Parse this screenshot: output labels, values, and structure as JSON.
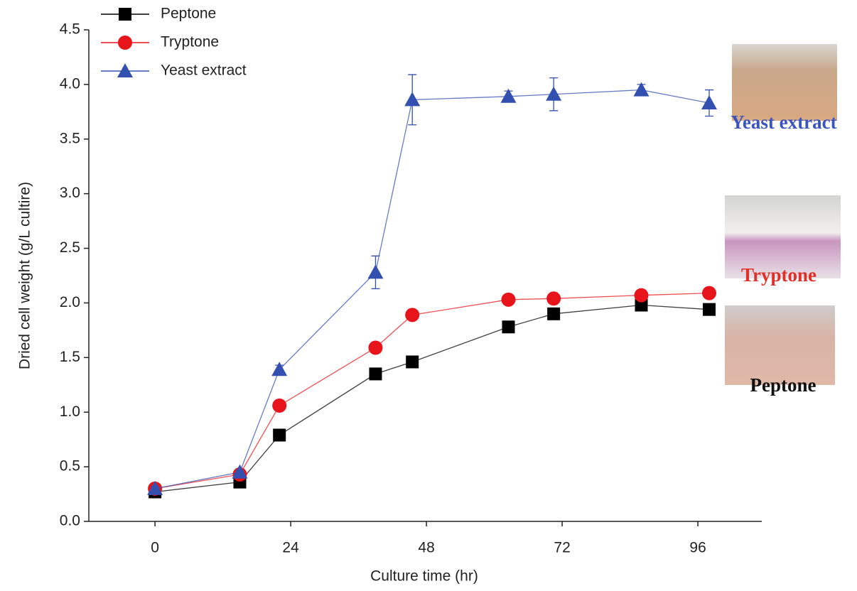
{
  "chart_data": {
    "type": "line",
    "x_label": "Culture time (hr)",
    "y_label": "Dried cell weight (g/L cultire)",
    "x": [
      0,
      15,
      22,
      39,
      45.5,
      62.5,
      70.5,
      86,
      98
    ],
    "series": [
      {
        "name": "Peptone",
        "color": "#000000",
        "marker": "square",
        "values": [
          0.27,
          0.36,
          0.79,
          1.35,
          1.46,
          1.78,
          1.9,
          1.98,
          1.94
        ]
      },
      {
        "name": "Tryptone",
        "color": "#e8141b",
        "marker": "circle",
        "values": [
          0.3,
          0.43,
          1.06,
          1.59,
          1.89,
          2.03,
          2.04,
          2.07,
          2.09
        ]
      },
      {
        "name": "Yeast extract",
        "color": "#3350b0",
        "marker": "triangle",
        "values": [
          0.3,
          0.45,
          1.39,
          2.28,
          3.86,
          3.89,
          3.91,
          3.95,
          3.83
        ],
        "errors": [
          0.02,
          0.02,
          0.04,
          0.15,
          0.23,
          0.05,
          0.15,
          0.05,
          0.12
        ]
      }
    ],
    "xlim": [
      -11.7,
      107.3
    ],
    "ylim": [
      0,
      4.5
    ],
    "xticks": [
      0,
      24,
      48,
      72,
      96
    ],
    "yticks": [
      {
        "value": 0,
        "label": "0.0"
      },
      {
        "value": 0.5,
        "label": "0.5"
      },
      {
        "value": 1,
        "label": "1.0"
      },
      {
        "value": 1.5,
        "label": "1.5"
      },
      {
        "value": 2,
        "label": "2.0"
      },
      {
        "value": 2.5,
        "label": "2.5"
      },
      {
        "value": 3,
        "label": "3.0"
      },
      {
        "value": 3.5,
        "label": "3.5"
      },
      {
        "value": 4,
        "label": "4.0"
      },
      {
        "value": 4.5,
        "label": "4.5"
      }
    ],
    "legend": "top-left",
    "annotations": [
      {
        "text": "Yeast extract",
        "color": "#3a55c0"
      },
      {
        "text": "Tryptone",
        "color": "#e0302a"
      },
      {
        "text": "Peptone",
        "color": "#111111"
      }
    ]
  }
}
